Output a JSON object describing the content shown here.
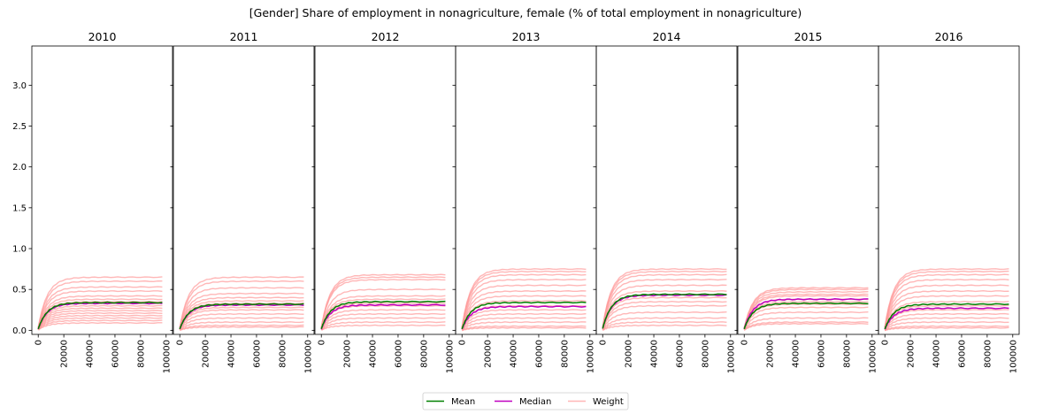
{
  "chart_data": {
    "type": "line",
    "title": "[Gender] Share of employment in nonagriculture, female (% of total employment in nonagriculture)",
    "panels": [
      {
        "title": "2010",
        "mean": 0.34,
        "median": 0.33,
        "weight_levels": [
          0.65,
          0.6,
          0.53,
          0.48,
          0.42,
          0.38,
          0.35,
          0.33,
          0.3,
          0.27,
          0.24,
          0.21,
          0.18,
          0.15,
          0.12,
          0.09
        ]
      },
      {
        "title": "2011",
        "mean": 0.32,
        "median": 0.31,
        "weight_levels": [
          0.65,
          0.6,
          0.52,
          0.45,
          0.4,
          0.36,
          0.33,
          0.31,
          0.28,
          0.25,
          0.2,
          0.15,
          0.1,
          0.06,
          0.04
        ]
      },
      {
        "title": "2012",
        "mean": 0.35,
        "median": 0.31,
        "weight_levels": [
          0.68,
          0.65,
          0.62,
          0.5,
          0.42,
          0.38,
          0.35,
          0.33,
          0.3,
          0.25,
          0.2,
          0.15,
          0.1,
          0.06
        ]
      },
      {
        "title": "2013",
        "mean": 0.34,
        "median": 0.29,
        "weight_levels": [
          0.75,
          0.72,
          0.68,
          0.62,
          0.55,
          0.48,
          0.42,
          0.36,
          0.3,
          0.25,
          0.2,
          0.15,
          0.1,
          0.05,
          0.03
        ]
      },
      {
        "title": "2014",
        "mean": 0.44,
        "median": 0.43,
        "weight_levels": [
          0.75,
          0.72,
          0.68,
          0.62,
          0.55,
          0.48,
          0.44,
          0.4,
          0.35,
          0.3,
          0.22,
          0.15,
          0.1,
          0.06
        ]
      },
      {
        "title": "2015",
        "mean": 0.33,
        "median": 0.38,
        "weight_levels": [
          0.52,
          0.5,
          0.47,
          0.44,
          0.42,
          0.38,
          0.35,
          0.32,
          0.28,
          0.22,
          0.15,
          0.1,
          0.08
        ]
      },
      {
        "title": "2016",
        "mean": 0.32,
        "median": 0.27,
        "weight_levels": [
          0.75,
          0.72,
          0.68,
          0.62,
          0.55,
          0.48,
          0.42,
          0.35,
          0.3,
          0.25,
          0.2,
          0.15,
          0.1,
          0.05,
          0.03
        ]
      }
    ],
    "x_ticks": [
      "0",
      "20000",
      "40000",
      "60000",
      "80000",
      "100000"
    ],
    "y_ticks": [
      "0.0",
      "0.5",
      "1.0",
      "1.5",
      "2.0",
      "2.5",
      "3.0"
    ],
    "xlim": [
      -5000,
      105000
    ],
    "ylim": [
      -0.05,
      3.48
    ],
    "series": [
      {
        "name": "Mean",
        "color": "#008000"
      },
      {
        "name": "Median",
        "color": "#bf00bf"
      },
      {
        "name": "Weight",
        "color": "#ff9999"
      }
    ],
    "legend_position": "bottom-center",
    "grid": false
  }
}
